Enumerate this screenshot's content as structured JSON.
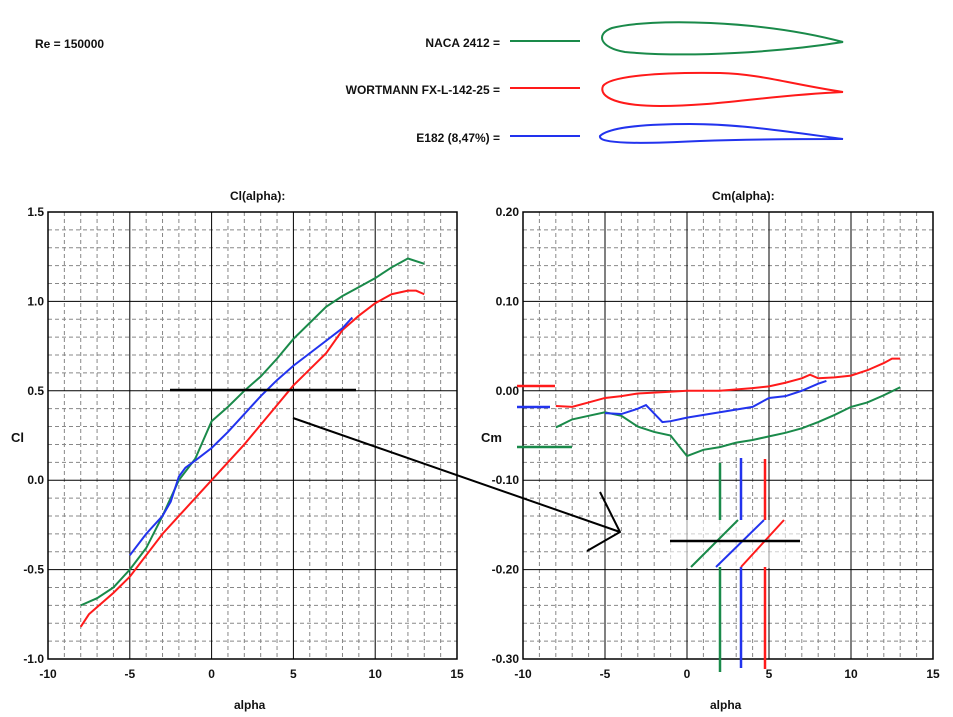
{
  "header": {
    "reynolds": "Re = 150000"
  },
  "legend": [
    {
      "label": "NACA 2412 =",
      "color": "#1a8a4a"
    },
    {
      "label": "WORTMANN FX-L-142-25 =",
      "color": "#ff1a1a"
    },
    {
      "label": "E182 (8,47%) =",
      "color": "#2233ee"
    }
  ],
  "chart_data": [
    {
      "type": "line",
      "title": "Cl(alpha):",
      "xlabel": "alpha",
      "ylabel": "Cl",
      "xlim": [
        -10,
        15
      ],
      "ylim": [
        -1.0,
        1.5
      ],
      "xticks": [
        "-10",
        "-5",
        "0",
        "5",
        "10",
        "15"
      ],
      "yticks": [
        "1.5",
        "1.0",
        "0.5",
        "0.0",
        "-0.5",
        "-1.0"
      ],
      "grid": true,
      "series": [
        {
          "name": "NACA 2412",
          "color": "#1a8a4a",
          "x": [
            -8,
            -7,
            -6,
            -5,
            -4,
            -3,
            -2.5,
            -2,
            -1,
            0,
            1,
            2,
            3,
            4,
            5,
            6,
            7,
            8,
            9,
            10,
            11,
            12,
            13
          ],
          "y": [
            -0.7,
            -0.66,
            -0.6,
            -0.5,
            -0.38,
            -0.2,
            -0.1,
            0.0,
            0.12,
            0.33,
            0.41,
            0.5,
            0.58,
            0.68,
            0.79,
            0.88,
            0.97,
            1.03,
            1.08,
            1.13,
            1.19,
            1.24,
            1.21
          ]
        },
        {
          "name": "WORTMANN FX-L-142-25",
          "color": "#ff1a1a",
          "x": [
            -8,
            -7.5,
            -7,
            -6,
            -5,
            -4,
            -3,
            -2,
            -1,
            0,
            1,
            2,
            3,
            4,
            5,
            6,
            7,
            8,
            9,
            10,
            11,
            12,
            12.5,
            13
          ],
          "y": [
            -0.82,
            -0.75,
            -0.71,
            -0.63,
            -0.54,
            -0.42,
            -0.3,
            -0.2,
            -0.1,
            0.0,
            0.1,
            0.2,
            0.31,
            0.42,
            0.53,
            0.62,
            0.71,
            0.84,
            0.92,
            0.99,
            1.04,
            1.06,
            1.06,
            1.04
          ]
        },
        {
          "name": "E182 (8,47%)",
          "color": "#2233ee",
          "x": [
            -5,
            -4,
            -3,
            -2.5,
            -2,
            -1.6,
            -1,
            0,
            1,
            2,
            3,
            4,
            5,
            6,
            7,
            8,
            8.6
          ],
          "y": [
            -0.42,
            -0.3,
            -0.2,
            -0.12,
            0.02,
            0.07,
            0.11,
            0.18,
            0.27,
            0.37,
            0.47,
            0.56,
            0.64,
            0.71,
            0.78,
            0.85,
            0.91
          ]
        }
      ]
    },
    {
      "type": "line",
      "title": "Cm(alpha):",
      "xlabel": "alpha",
      "ylabel": "Cm",
      "xlim": [
        -10,
        15
      ],
      "ylim": [
        -0.3,
        0.2
      ],
      "xticks": [
        "-10",
        "-5",
        "0",
        "5",
        "10",
        "15"
      ],
      "yticks": [
        "0.20",
        "0.10",
        "0.00",
        "-0.10",
        "-0.20",
        "-0.30"
      ],
      "grid": true,
      "series": [
        {
          "name": "NACA 2412",
          "color": "#1a8a4a",
          "x": [
            -8,
            -7,
            -6,
            -5,
            -4,
            -3,
            -2,
            -1,
            0,
            1,
            2,
            3,
            4,
            5,
            6,
            7,
            8,
            9,
            10,
            11,
            12,
            13
          ],
          "y": [
            -0.041,
            -0.032,
            -0.028,
            -0.024,
            -0.028,
            -0.04,
            -0.046,
            -0.05,
            -0.073,
            -0.066,
            -0.063,
            -0.058,
            -0.055,
            -0.051,
            -0.047,
            -0.042,
            -0.035,
            -0.027,
            -0.018,
            -0.013,
            -0.005,
            0.004
          ]
        },
        {
          "name": "WORTMANN FX-L-142-25",
          "color": "#ff1a1a",
          "x": [
            -8,
            -7,
            -6,
            -5,
            -4,
            -3,
            -2,
            0,
            2,
            4,
            5,
            6,
            7,
            7.5,
            8,
            9,
            10,
            11,
            12,
            12.5,
            13
          ],
          "y": [
            -0.017,
            -0.018,
            -0.013,
            -0.008,
            -0.006,
            -0.003,
            -0.002,
            0.0,
            0.0,
            0.003,
            0.005,
            0.009,
            0.014,
            0.018,
            0.014,
            0.015,
            0.017,
            0.023,
            0.031,
            0.036,
            0.036
          ]
        },
        {
          "name": "E182 (8,47%)",
          "color": "#2233ee",
          "x": [
            -5,
            -4,
            -3,
            -2.5,
            -1.5,
            -1,
            0,
            2,
            4,
            5,
            6,
            7,
            8,
            8.5
          ],
          "y": [
            -0.025,
            -0.026,
            -0.02,
            -0.016,
            -0.035,
            -0.034,
            -0.03,
            -0.024,
            -0.018,
            -0.008,
            -0.006,
            0.0,
            0.008,
            0.011
          ]
        }
      ]
    }
  ]
}
